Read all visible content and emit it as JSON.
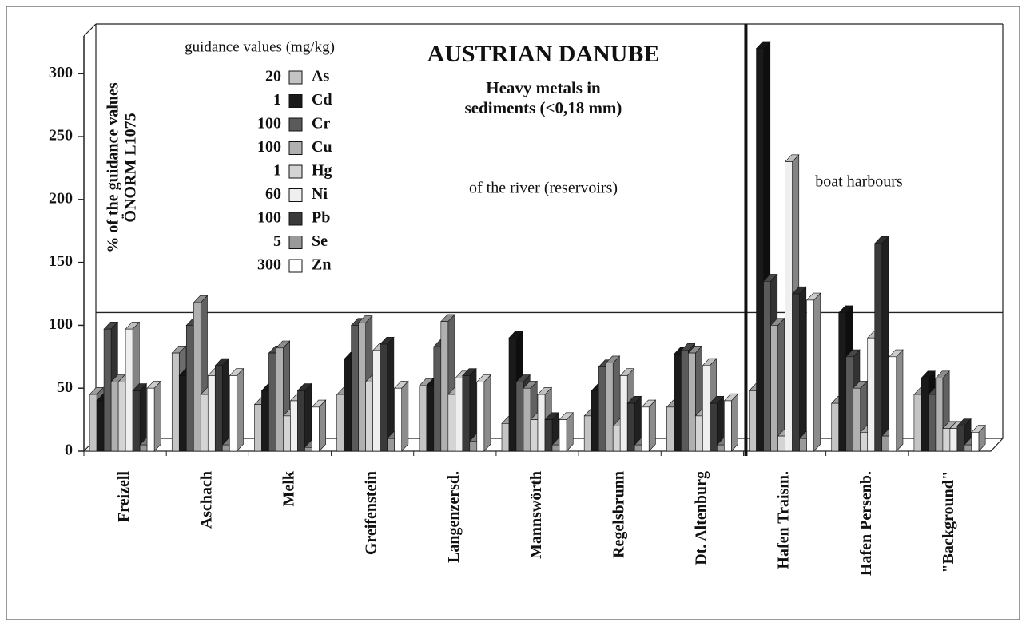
{
  "chart_data": {
    "type": "bar3d",
    "title": "AUSTRIAN DANUBE",
    "subtitle": [
      "Heavy metals in",
      "sediments (<0,18 mm)"
    ],
    "legend_title": "guidance values (mg/kg)",
    "y_label": [
      "% of the guidance values",
      "ÖNORM L1075"
    ],
    "annotations": [
      "of the river (reservoirs)",
      "boat harbours"
    ],
    "reference_line": 100,
    "categories": [
      "Freizell",
      "Aschach",
      "Melk",
      "Greifenstein",
      "Langenzersd.",
      "Mannswörth",
      "Regelsbrunn",
      "Dt. Altenburg",
      "Hafen Traism.",
      "Hafen Persenb.",
      "\"Background\""
    ],
    "series": [
      {
        "name": "As",
        "guidance": 20,
        "color": "#c4c4c4",
        "values": [
          45,
          78,
          37,
          45,
          52,
          22,
          28,
          35,
          48,
          38,
          45
        ]
      },
      {
        "name": "Cd",
        "guidance": 1,
        "color": "#1a1a1a",
        "values": [
          40,
          60,
          48,
          73,
          52,
          90,
          48,
          77,
          320,
          110,
          58
        ]
      },
      {
        "name": "Cr",
        "guidance": 100,
        "color": "#5a5a5a",
        "values": [
          97,
          100,
          78,
          100,
          83,
          55,
          67,
          80,
          135,
          75,
          45
        ]
      },
      {
        "name": "Cu",
        "guidance": 100,
        "color": "#b0b0b0",
        "values": [
          55,
          118,
          82,
          102,
          103,
          50,
          70,
          78,
          100,
          50,
          58
        ]
      },
      {
        "name": "Hg",
        "guidance": 1,
        "color": "#d4d4d4",
        "values": [
          55,
          45,
          28,
          55,
          45,
          25,
          20,
          28,
          12,
          15,
          18
        ]
      },
      {
        "name": "Ni",
        "guidance": 60,
        "color": "#efefef",
        "values": [
          97,
          60,
          40,
          80,
          58,
          45,
          60,
          68,
          230,
          90,
          18
        ]
      },
      {
        "name": "Pb",
        "guidance": 100,
        "color": "#3a3a3a",
        "values": [
          48,
          68,
          48,
          85,
          60,
          25,
          38,
          38,
          125,
          165,
          20
        ]
      },
      {
        "name": "Se",
        "guidance": 5,
        "color": "#9a9a9a",
        "values": [
          5,
          5,
          3,
          10,
          8,
          5,
          5,
          5,
          10,
          12,
          5
        ]
      },
      {
        "name": "Zn",
        "guidance": 300,
        "color": "#ffffff",
        "values": [
          50,
          60,
          35,
          50,
          55,
          25,
          35,
          40,
          120,
          75,
          15
        ]
      }
    ],
    "ylim": [
      0,
      330
    ],
    "yticks": [
      0,
      50,
      100,
      150,
      200,
      250,
      300
    ]
  }
}
